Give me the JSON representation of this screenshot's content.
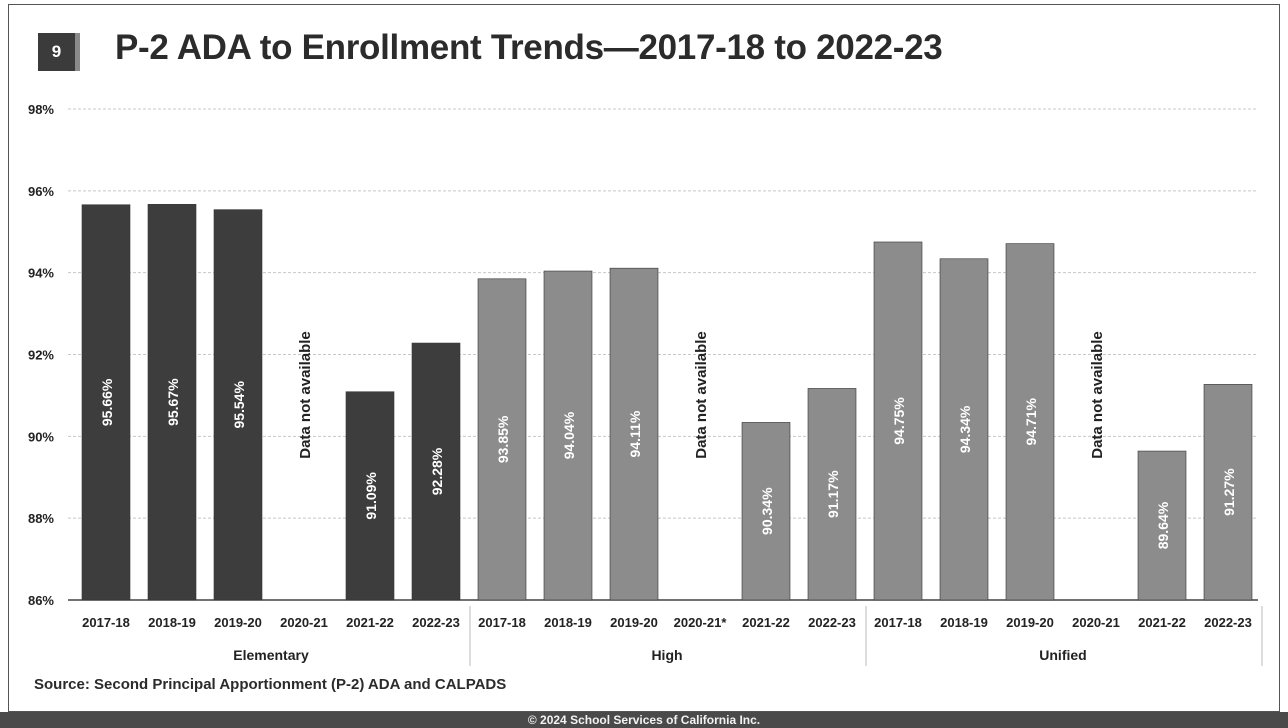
{
  "header": {
    "slide_number": "9",
    "title": "P-2 ADA to Enrollment Trends—2017-18 to 2022-23"
  },
  "source": "Source: Second Principal Apportionment (P-2) ADA and CALPADS",
  "footer": "© 2024 School Services of California Inc.",
  "colors": {
    "elementary": "#3d3d3d",
    "high": "#8c8c8c",
    "unified": "#8c8c8c",
    "grid": "#c8c8c8",
    "text": "#222222"
  },
  "chart_data": {
    "type": "bar",
    "title": "P-2 ADA to Enrollment Trends—2017-18 to 2022-23",
    "ylim": [
      86,
      98
    ],
    "yticks": [
      98,
      96,
      94,
      92,
      90,
      88,
      86
    ],
    "ytick_labels": [
      "98%",
      "96%",
      "94%",
      "92%",
      "90%",
      "88%",
      "86%"
    ],
    "grid": true,
    "groups": [
      {
        "name": "Elementary",
        "categories": [
          "2017-18",
          "2018-19",
          "2019-20",
          "2020-21",
          "2021-22",
          "2022-23"
        ],
        "values": [
          95.66,
          95.67,
          95.54,
          null,
          91.09,
          92.28
        ],
        "labels": [
          "95.66%",
          "95.67%",
          "95.54%",
          "Data not available",
          "91.09%",
          "92.28%"
        ]
      },
      {
        "name": "High",
        "categories": [
          "2017-18",
          "2018-19",
          "2019-20",
          "2020-21*",
          "2021-22",
          "2022-23"
        ],
        "values": [
          93.85,
          94.04,
          94.11,
          null,
          90.34,
          91.17
        ],
        "labels": [
          "93.85%",
          "94.04%",
          "94.11%",
          "Data not available",
          "90.34%",
          "91.17%"
        ]
      },
      {
        "name": "Unified",
        "categories": [
          "2017-18",
          "2018-19",
          "2019-20",
          "2020-21",
          "2021-22",
          "2022-23"
        ],
        "values": [
          94.75,
          94.34,
          94.71,
          null,
          89.64,
          91.27
        ],
        "labels": [
          "94.75%",
          "94.34%",
          "94.71%",
          "Data not available",
          "89.64%",
          "91.27%"
        ]
      }
    ]
  }
}
